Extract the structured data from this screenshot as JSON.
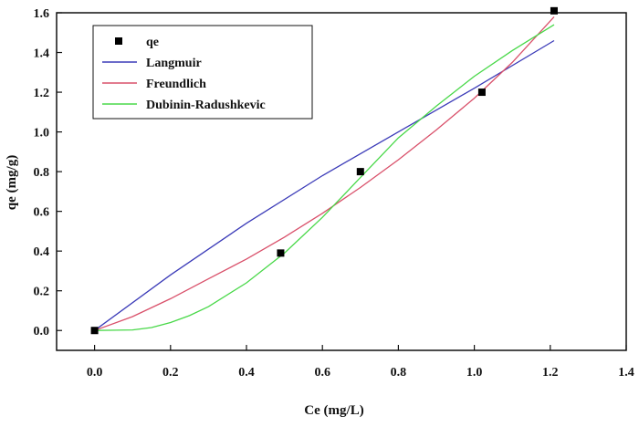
{
  "chart_data": {
    "type": "scatter",
    "title": "",
    "xlabel": "Ce (mg/L)",
    "ylabel": "qe (mg/g)",
    "xlim": [
      -0.1,
      1.4
    ],
    "ylim": [
      -0.1,
      1.6
    ],
    "x_ticks": [
      "0.0",
      "0.2",
      "0.4",
      "0.6",
      "0.8",
      "1.0",
      "1.2",
      "1.4"
    ],
    "y_ticks": [
      "0.0",
      "0.2",
      "0.4",
      "0.6",
      "0.8",
      "1.0",
      "1.2",
      "1.4",
      "1.6"
    ],
    "grid": false,
    "legend_position": "top-left",
    "series": [
      {
        "name": "qe",
        "kind": "points",
        "color": "#000000",
        "x": [
          0.0,
          0.49,
          0.7,
          1.02,
          1.21
        ],
        "y": [
          0.0,
          0.39,
          0.8,
          1.2,
          1.61
        ]
      },
      {
        "name": "Langmuir",
        "kind": "line",
        "color": "#3b3bb8",
        "x": [
          0.0,
          0.2,
          0.4,
          0.6,
          0.8,
          1.0,
          1.21
        ],
        "y": [
          0.0,
          0.28,
          0.54,
          0.78,
          1.0,
          1.22,
          1.46
        ]
      },
      {
        "name": "Freundlich",
        "kind": "line",
        "color": "#d9506a",
        "x": [
          0.0,
          0.1,
          0.2,
          0.3,
          0.4,
          0.5,
          0.6,
          0.7,
          0.8,
          0.9,
          1.0,
          1.1,
          1.21
        ],
        "y": [
          0.0,
          0.07,
          0.16,
          0.26,
          0.36,
          0.47,
          0.59,
          0.72,
          0.86,
          1.01,
          1.17,
          1.35,
          1.58
        ]
      },
      {
        "name": "Dubinin-Radushkevic",
        "kind": "line",
        "color": "#48d848",
        "x": [
          0.0,
          0.1,
          0.15,
          0.2,
          0.25,
          0.3,
          0.4,
          0.5,
          0.6,
          0.7,
          0.8,
          0.9,
          1.0,
          1.1,
          1.21
        ],
        "y": [
          0.0,
          0.003,
          0.015,
          0.04,
          0.075,
          0.12,
          0.24,
          0.39,
          0.57,
          0.77,
          0.97,
          1.13,
          1.28,
          1.41,
          1.54
        ]
      }
    ]
  }
}
